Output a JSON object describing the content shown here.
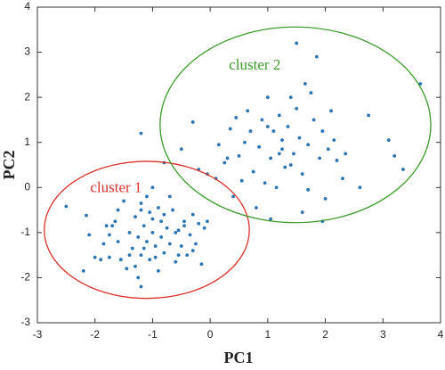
{
  "chart_data": {
    "type": "scatter",
    "xlabel": "PC1",
    "ylabel": "PC2",
    "xlim": [
      -3,
      4
    ],
    "ylim": [
      -3,
      4
    ],
    "xticks": [
      -3,
      -2,
      -1,
      0,
      1,
      2,
      3,
      4
    ],
    "yticks": [
      -3,
      -2,
      -1,
      0,
      1,
      2,
      3,
      4
    ],
    "grid": false,
    "series": [
      {
        "color": "#2a74b3",
        "x": [
          -2.5,
          -2.2,
          -2.1,
          -2.15,
          -2.0,
          -1.85,
          -1.8,
          -1.75,
          -1.7,
          -1.6,
          -1.55,
          -1.5,
          -1.45,
          -1.4,
          -1.35,
          -1.3,
          -1.3,
          -1.25,
          -1.2,
          -1.2,
          -1.15,
          -1.1,
          -1.1,
          -1.05,
          -1.0,
          -1.0,
          -0.95,
          -0.9,
          -0.9,
          -0.85,
          -0.8,
          -0.8,
          -0.75,
          -0.7,
          -0.65,
          -0.6,
          -0.55,
          -0.5,
          -0.45,
          -0.4,
          -0.35,
          -0.3,
          -0.25,
          -0.2,
          -0.15,
          -0.1,
          -0.55,
          -1.2,
          -1.25,
          -0.05,
          -0.45,
          -0.7,
          -1.65,
          -1.0,
          -1.2,
          -0.85,
          -1.05,
          -1.4,
          -1.6,
          -0.6,
          -0.95,
          -1.15,
          -0.3,
          -1.75,
          -1.9,
          -1.2,
          -0.8,
          -0.5,
          -0.3,
          -0.2,
          0.1,
          0.15,
          0.3,
          0.35,
          0.4,
          0.5,
          0.6,
          0.65,
          0.75,
          0.85,
          0.9,
          0.95,
          1.0,
          1.05,
          1.1,
          1.15,
          1.2,
          1.25,
          1.3,
          1.35,
          1.4,
          1.45,
          1.5,
          1.5,
          1.55,
          1.6,
          1.65,
          1.7,
          1.75,
          1.8,
          1.85,
          1.9,
          1.95,
          2.0,
          2.05,
          2.1,
          2.15,
          2.2,
          2.3,
          1.7,
          1.2,
          0.7,
          0.55,
          0.8,
          1.05,
          1.6,
          1.95,
          2.35,
          2.75,
          3.1,
          3.2,
          3.35,
          3.65,
          1.25,
          0.45,
          1.0,
          1.4,
          0.25,
          -0.05,
          2.6
        ],
        "y": [
          -0.42,
          -1.85,
          -1.05,
          -0.62,
          -1.55,
          -1.25,
          -0.85,
          -1.55,
          -0.85,
          -1.2,
          -1.6,
          -0.3,
          -1.8,
          -1.0,
          -1.35,
          -0.65,
          -1.75,
          -1.1,
          -0.5,
          -1.5,
          -0.85,
          -1.2,
          -0.2,
          -1.6,
          -0.7,
          -1.0,
          -1.3,
          -0.45,
          -1.85,
          -1.1,
          -0.6,
          -1.45,
          -0.9,
          -1.25,
          -0.5,
          -1.65,
          -0.95,
          -1.3,
          -0.75,
          -1.5,
          -1.05,
          -0.6,
          -1.25,
          -0.8,
          -1.7,
          -0.9,
          -1.5,
          -2.2,
          -2.0,
          -0.75,
          -0.85,
          -0.2,
          -0.75,
          0.0,
          -0.35,
          -0.75,
          -0.55,
          -1.5,
          -0.5,
          -1.0,
          -1.55,
          -1.35,
          -1.4,
          -1.05,
          -1.6,
          1.2,
          0.55,
          0.85,
          1.45,
          0.4,
          0.2,
          0.95,
          0.65,
          1.3,
          -0.2,
          0.7,
          1.0,
          1.7,
          0.35,
          0.9,
          1.5,
          0.1,
          2.0,
          0.65,
          1.25,
          0.0,
          1.6,
          0.85,
          0.45,
          1.35,
          2.0,
          0.75,
          1.75,
          3.2,
          1.1,
          0.3,
          2.3,
          0.95,
          2.1,
          1.5,
          2.9,
          0.65,
          1.25,
          -0.25,
          0.85,
          1.7,
          1.05,
          0.6,
          0.2,
          -0.05,
          0.75,
          1.25,
          0.15,
          -0.45,
          -0.7,
          -0.55,
          -0.75,
          0.75,
          1.6,
          1.05,
          0.7,
          0.4,
          2.3,
          1.05,
          1.55,
          1.35,
          0.5,
          0.55,
          0.3,
          0.0
        ]
      }
    ],
    "ellipses": [
      {
        "label": "cluster 1",
        "color": "#d9312b",
        "center": [
          -1.1,
          -0.94
        ],
        "radii": [
          1.78,
          1.52
        ]
      },
      {
        "label": "cluster 2",
        "color": "#3a9a2a",
        "center": [
          1.48,
          1.39
        ],
        "radii": [
          2.35,
          2.17
        ]
      }
    ]
  }
}
